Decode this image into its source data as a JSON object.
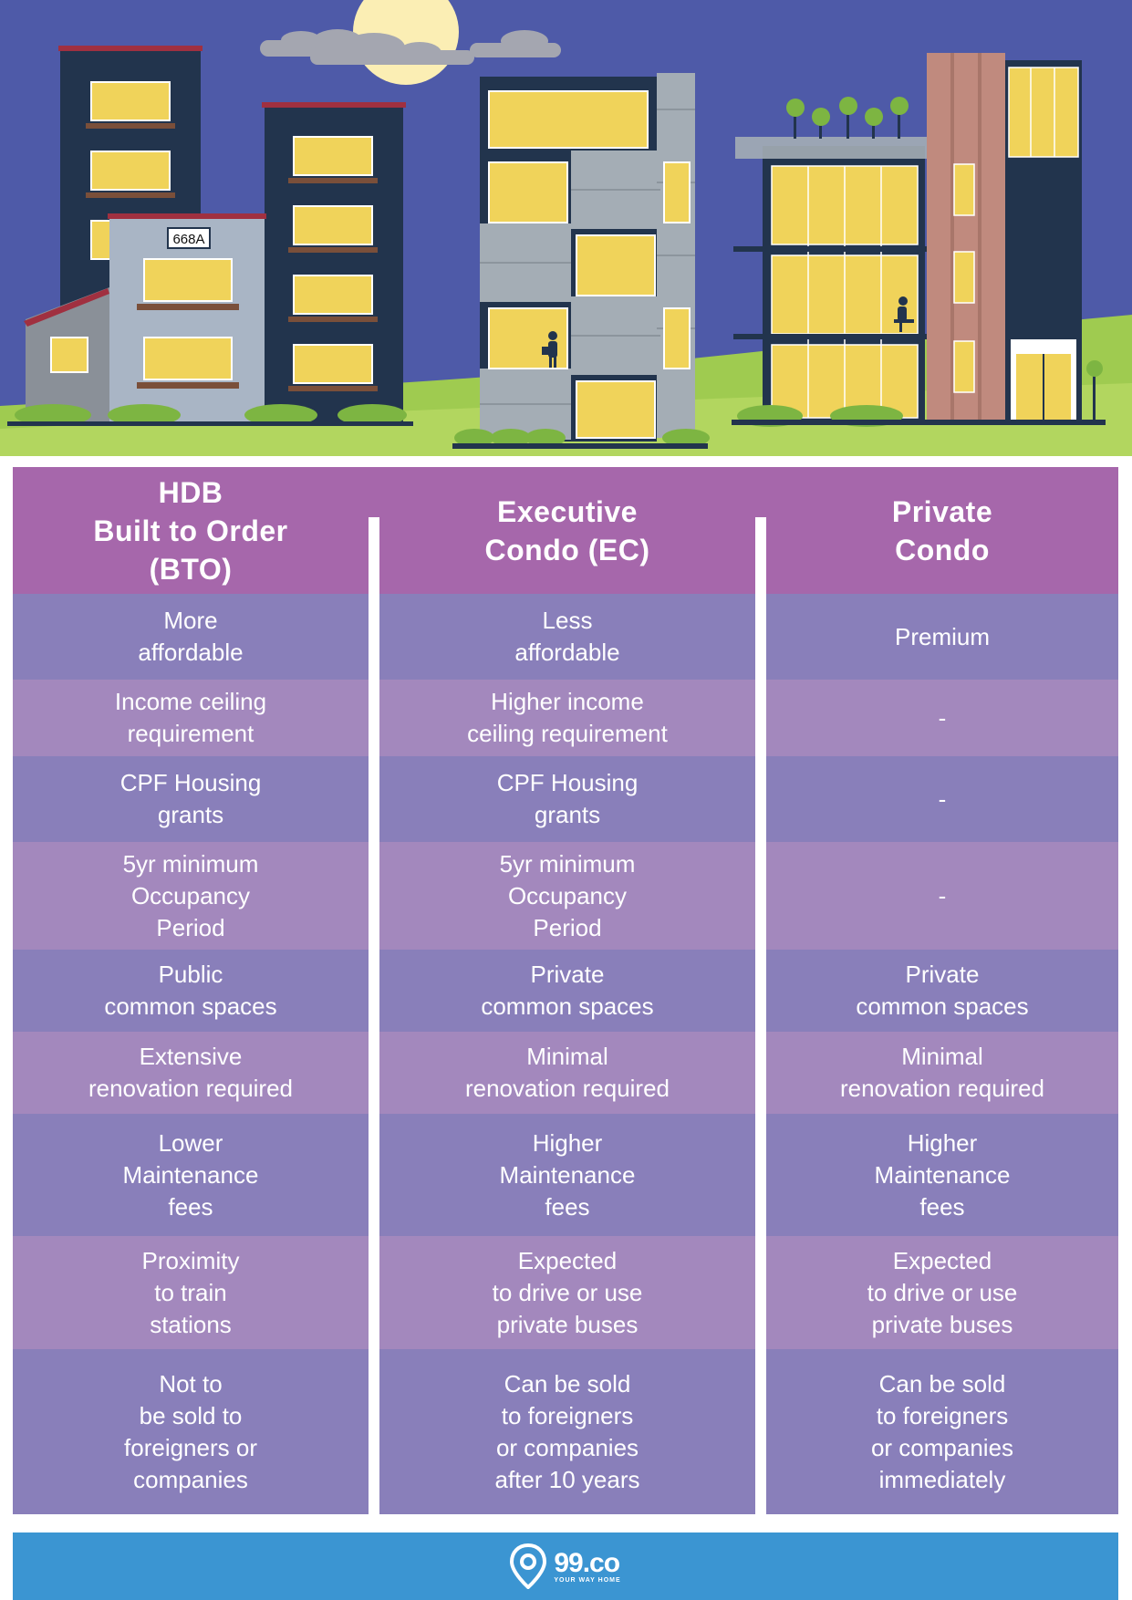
{
  "scene": {
    "sign_text": "668A"
  },
  "colors": {
    "sky": "#4e5aa8",
    "header": "#a667ab",
    "row_dark": "#897fba",
    "row_light": "#a388bd",
    "footer": "#3b95d2",
    "window": "#f0d35a"
  },
  "headers": [
    "HDB\nBuilt to Order\n(BTO)",
    "Executive\nCondo (EC)",
    "Private\nCondo"
  ],
  "rows": [
    [
      "More\naffordable",
      "Less\naffordable",
      "Premium"
    ],
    [
      "Income ceiling\nrequirement",
      "Higher income\nceiling requirement",
      "-"
    ],
    [
      "CPF Housing\ngrants",
      "CPF Housing\ngrants",
      "-"
    ],
    [
      "5yr minimum\nOccupancy\nPeriod",
      "5yr minimum\nOccupancy\nPeriod",
      "-"
    ],
    [
      "Public\ncommon spaces",
      "Private\ncommon spaces",
      "Private\ncommon spaces"
    ],
    [
      "Extensive\nrenovation required",
      "Minimal\nrenovation required",
      "Minimal\nrenovation required"
    ],
    [
      "Lower\nMaintenance\nfees",
      "Higher\nMaintenance\nfees",
      "Higher\nMaintenance\nfees"
    ],
    [
      "Proximity\nto train\nstations",
      "Expected\nto drive or use\nprivate buses",
      "Expected\nto drive or use\nprivate buses"
    ],
    [
      "Not to\nbe sold to\nforeigners or\ncompanies",
      "Can be sold\nto foreigners\nor companies\nafter 10 years",
      "Can be sold\nto foreigners\nor companies\nimmediately"
    ]
  ],
  "footer": {
    "logo_text": "99.co",
    "tagline": "YOUR WAY HOME"
  },
  "icons": [
    "location-pin-icon",
    "person-with-bag-icon",
    "person-cycling-icon"
  ]
}
